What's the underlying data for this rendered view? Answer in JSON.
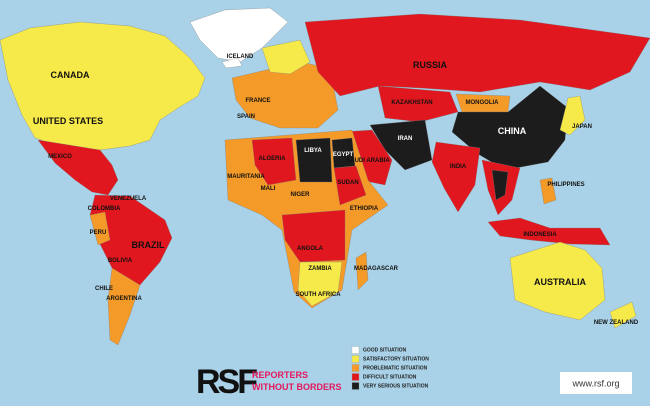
{
  "map": {
    "labels": [
      "CANADA",
      "UNITED STATES",
      "MEXICO",
      "COLOMBIA",
      "VENEZUELA",
      "BRAZIL",
      "PERU",
      "BOLIVIA",
      "CHILE",
      "ARGENTINA",
      "ICELAND",
      "SPAIN",
      "FRANCE",
      "RUSSIA",
      "KAZAKHSTAN",
      "MONGOLIA",
      "CHINA",
      "JAPAN",
      "INDIA",
      "IRAN",
      "SAUDI ARABIA",
      "ALGERIA",
      "LIBYA",
      "EGYPT",
      "MALI",
      "MAURITANIA",
      "NIGER",
      "SUDAN",
      "ETHIOPIA",
      "ANGOLA",
      "ZAMBIA",
      "SOUTH AFRICA",
      "MADAGASCAR",
      "PHILIPPINES",
      "INDONESIA",
      "AUSTRALIA",
      "NEW ZEALAND"
    ]
  },
  "legend": {
    "items": [
      {
        "label": "GOOD SITUATION",
        "color": "#ffffff"
      },
      {
        "label": "SATISFACTORY SITUATION",
        "color": "#f6ea4a"
      },
      {
        "label": "PROBLEMATIC SITUATION",
        "color": "#f49a28"
      },
      {
        "label": "DIFFICULT SITUATION",
        "color": "#e0171e"
      },
      {
        "label": "VERY SERIOUS SITUATION",
        "color": "#1c1c1c"
      }
    ]
  },
  "brand": {
    "logo": "RSF",
    "name_line1": "REPORTERS",
    "name_line2": "WITHOUT BORDERS"
  },
  "url": "www.rsf.org"
}
